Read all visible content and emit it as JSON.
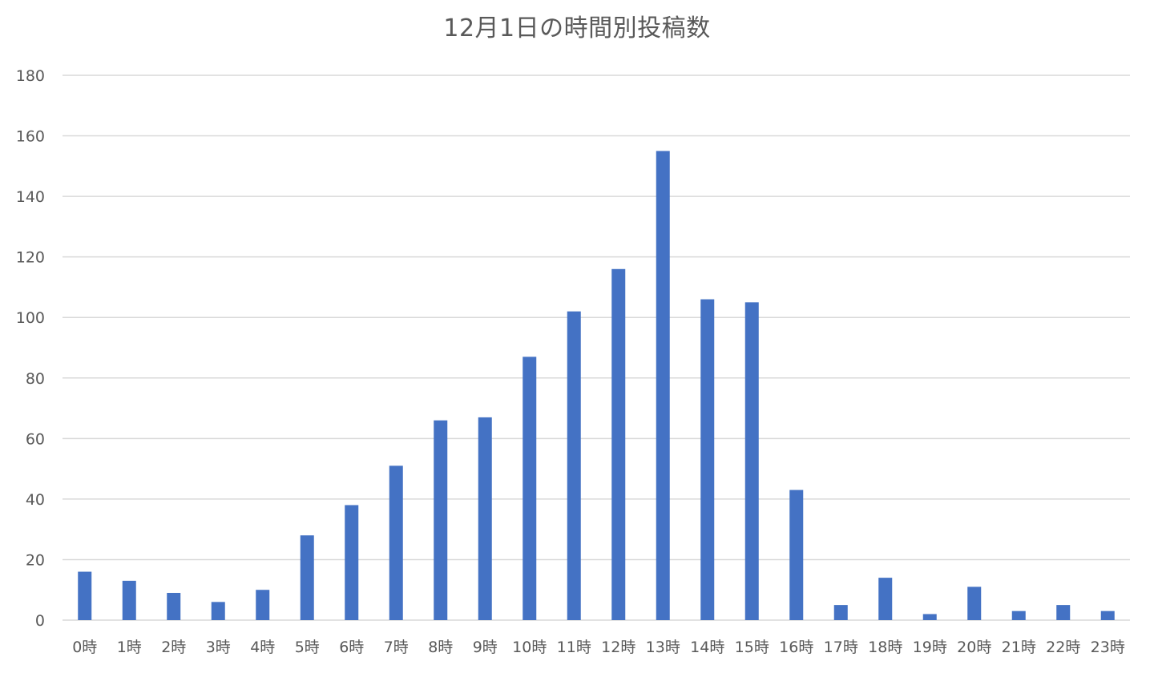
{
  "chart_data": {
    "type": "bar",
    "title": "12月1日の時間別投稿数",
    "xlabel": "",
    "ylabel": "",
    "categories": [
      "0時",
      "1時",
      "2時",
      "3時",
      "4時",
      "5時",
      "6時",
      "7時",
      "8時",
      "9時",
      "10時",
      "11時",
      "12時",
      "13時",
      "14時",
      "15時",
      "16時",
      "17時",
      "18時",
      "19時",
      "20時",
      "21時",
      "22時",
      "23時"
    ],
    "values": [
      16,
      13,
      9,
      6,
      10,
      28,
      38,
      51,
      66,
      67,
      87,
      102,
      116,
      155,
      106,
      105,
      43,
      5,
      14,
      2,
      11,
      3,
      5,
      3
    ],
    "ylim": [
      0,
      180
    ],
    "yticks": [
      0,
      20,
      40,
      60,
      80,
      100,
      120,
      140,
      160,
      180
    ],
    "grid": true,
    "legend": "none",
    "bar_color": "#4472c4"
  }
}
